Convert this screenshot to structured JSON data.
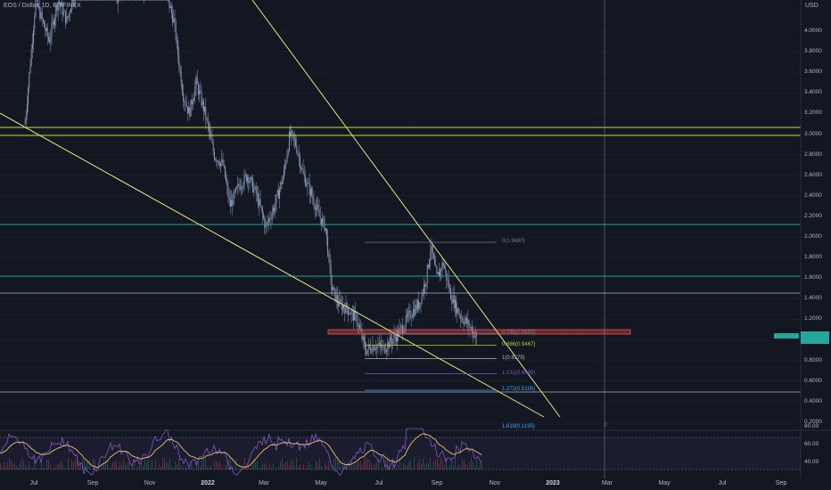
{
  "header": {
    "symbol_title": "EOS / Dollar, 1D, BITFINEX",
    "currency": "USD"
  },
  "price_axis": {
    "ticks": [
      {
        "label": "4.0000",
        "value": 4.0
      },
      {
        "label": "3.8000",
        "value": 3.8
      },
      {
        "label": "3.6000",
        "value": 3.6
      },
      {
        "label": "3.4000",
        "value": 3.4
      },
      {
        "label": "3.2000",
        "value": 3.2
      },
      {
        "label": "3.0000",
        "value": 3.0
      },
      {
        "label": "2.8000",
        "value": 2.8
      },
      {
        "label": "2.6000",
        "value": 2.6
      },
      {
        "label": "2.4000",
        "value": 2.4
      },
      {
        "label": "2.2000",
        "value": 2.2
      },
      {
        "label": "2.0000",
        "value": 2.0
      },
      {
        "label": "1.8000",
        "value": 1.8
      },
      {
        "label": "1.6000",
        "value": 1.6
      },
      {
        "label": "1.4000",
        "value": 1.4
      },
      {
        "label": "1.2000",
        "value": 1.2
      },
      {
        "label": "1.0000",
        "value": 1.0
      },
      {
        "label": "0.8000",
        "value": 0.8
      },
      {
        "label": "0.6000",
        "value": 0.6
      },
      {
        "label": "0.4000",
        "value": 0.4
      },
      {
        "label": "0.2000",
        "value": 0.2
      }
    ]
  },
  "time_axis": {
    "ticks": [
      {
        "label": "Jul",
        "bold": false
      },
      {
        "label": "Sep",
        "bold": false
      },
      {
        "label": "Nov",
        "bold": false
      },
      {
        "label": "2022",
        "bold": true
      },
      {
        "label": "Mar",
        "bold": false
      },
      {
        "label": "May",
        "bold": false
      },
      {
        "label": "Jul",
        "bold": false
      },
      {
        "label": "Sep",
        "bold": false
      },
      {
        "label": "Nov",
        "bold": false
      },
      {
        "label": "2023",
        "bold": true
      },
      {
        "label": "Mar",
        "bold": false
      },
      {
        "label": "May",
        "bold": false
      },
      {
        "label": "Jul",
        "bold": false
      },
      {
        "label": "Sep",
        "bold": false
      }
    ]
  },
  "fib_levels": [
    {
      "label": "0(1.9480)",
      "value": 1.948,
      "color": "#787b86"
    },
    {
      "label": "0.786(1.0597)",
      "value": 1.0597,
      "color": "#787b86"
    },
    {
      "label": "0.886(0.9467)",
      "value": 0.9467,
      "color": "#c0ca33"
    },
    {
      "label": "1(0.8179)",
      "value": 0.8179,
      "color": "#b2b5be"
    },
    {
      "label": "1.131(0.6699)",
      "value": 0.6699,
      "color": "#7e57c2"
    },
    {
      "label": "1.272(0.5105)",
      "value": 0.5105,
      "color": "#42a5f5"
    },
    {
      "label": "1.618(0.1195)",
      "value": 0.1195,
      "color": "#42a5f5"
    }
  ],
  "rsi_axis": {
    "ticks": [
      {
        "label": "80.00",
        "value": 80
      },
      {
        "label": "60.00",
        "value": 60
      },
      {
        "label": "40.00",
        "value": 40
      }
    ]
  },
  "colors": {
    "background": "#131722",
    "candle": "#8fa2bd",
    "trendline": "#e6e68a",
    "horizontal_green": "#26a69a",
    "horizontal_yellow": "#cddc39",
    "resistance_zone": "#ef5350",
    "rsi": "#7e57c2",
    "rsi_ma": "#e6c36a"
  }
}
